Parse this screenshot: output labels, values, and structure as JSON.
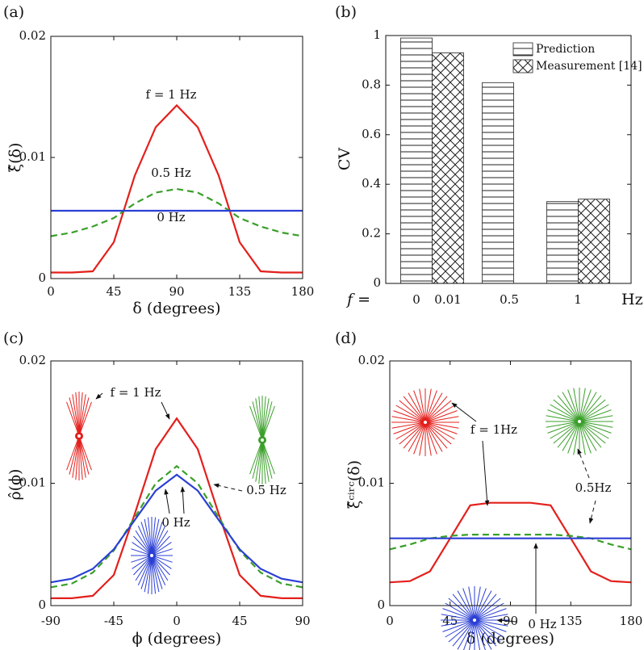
{
  "chart_data": [
    {
      "type": "line",
      "panel_label": "(a)",
      "xlabel": "δ (degrees)",
      "ylabel": "ξ̂(δ)",
      "x": [
        0,
        15,
        30,
        45,
        60,
        75,
        90,
        105,
        120,
        135,
        150,
        165,
        180
      ],
      "xlim": [
        0,
        180
      ],
      "xticks": [
        0,
        45,
        90,
        135,
        180
      ],
      "ylim": [
        0,
        0.02
      ],
      "yticks": [
        0,
        0.01,
        0.02
      ],
      "series": [
        {
          "name": "f = 1 Hz",
          "color": "#e3201c",
          "dashed": false,
          "values": [
            0.0005,
            0.0005,
            0.0006,
            0.003,
            0.0085,
            0.0125,
            0.0143,
            0.0125,
            0.0085,
            0.003,
            0.0006,
            0.0005,
            0.0005
          ]
        },
        {
          "name": "0.5 Hz",
          "color": "#3a9f2a",
          "dashed": true,
          "values": [
            0.0035,
            0.0038,
            0.0043,
            0.005,
            0.0062,
            0.0071,
            0.0074,
            0.0071,
            0.0062,
            0.005,
            0.0043,
            0.0038,
            0.0035
          ]
        },
        {
          "name": "0 Hz",
          "color": "#2b3fd4",
          "dashed": false,
          "values": [
            0.0056,
            0.0056,
            0.0056,
            0.0056,
            0.0056,
            0.0056,
            0.0056,
            0.0056,
            0.0056,
            0.0056,
            0.0056,
            0.0056,
            0.0056
          ]
        }
      ]
    },
    {
      "type": "bar",
      "panel_label": "(b)",
      "ylabel": "CV",
      "x_prefix": "f =",
      "x_unit": "Hz",
      "categories": [
        "0",
        "0.01",
        "0.5",
        "1"
      ],
      "ylim": [
        0,
        1
      ],
      "yticks": [
        0,
        0.2,
        0.4,
        0.6,
        0.8,
        1
      ],
      "legend": "upper right",
      "series": [
        {
          "name": "Prediction",
          "hatch": "horizontal",
          "values": [
            0.99,
            null,
            0.81,
            0.33
          ]
        },
        {
          "name": "Measurement [14]",
          "hatch": "cross",
          "values": [
            null,
            0.93,
            null,
            0.34
          ]
        }
      ]
    },
    {
      "type": "line",
      "panel_label": "(c)",
      "xlabel": "ϕ (degrees)",
      "ylabel": "ρ̂(ϕ)",
      "x": [
        -90,
        -75,
        -60,
        -45,
        -30,
        -15,
        0,
        15,
        30,
        45,
        60,
        75,
        90
      ],
      "xlim": [
        -90,
        90
      ],
      "xticks": [
        -90,
        -45,
        0,
        45,
        90
      ],
      "ylim": [
        0,
        0.02
      ],
      "yticks": [
        0,
        0.01,
        0.02
      ],
      "series": [
        {
          "name": "f = 1 Hz",
          "color": "#e3201c",
          "dashed": false,
          "values": [
            0.0006,
            0.0006,
            0.0008,
            0.0025,
            0.0075,
            0.0128,
            0.0153,
            0.0128,
            0.0075,
            0.0025,
            0.0008,
            0.0006,
            0.0006
          ]
        },
        {
          "name": "0.5 Hz",
          "color": "#3a9f2a",
          "dashed": true,
          "values": [
            0.0015,
            0.0018,
            0.0027,
            0.0045,
            0.0072,
            0.01,
            0.0114,
            0.01,
            0.0072,
            0.0045,
            0.0027,
            0.0018,
            0.0015
          ]
        },
        {
          "name": "0 Hz",
          "color": "#2b3fd4",
          "dashed": false,
          "values": [
            0.0019,
            0.0022,
            0.003,
            0.0046,
            0.007,
            0.0094,
            0.0107,
            0.0094,
            0.007,
            0.0046,
            0.003,
            0.0022,
            0.0019
          ]
        }
      ]
    },
    {
      "type": "line",
      "panel_label": "(d)",
      "xlabel": "δ (degrees)",
      "ylabel": "ξ̂ᶜⁱʳᶜ(δ)",
      "x": [
        0,
        15,
        30,
        45,
        60,
        75,
        90,
        105,
        120,
        135,
        150,
        165,
        180
      ],
      "xlim": [
        0,
        180
      ],
      "xticks": [
        0,
        45,
        90,
        135,
        180
      ],
      "ylim": [
        0,
        0.02
      ],
      "yticks": [
        0,
        0.01,
        0.02
      ],
      "series": [
        {
          "name": "f = 1Hz",
          "color": "#e3201c",
          "dashed": false,
          "values": [
            0.0019,
            0.002,
            0.0028,
            0.0055,
            0.0082,
            0.0084,
            0.0084,
            0.0084,
            0.0082,
            0.0055,
            0.0028,
            0.002,
            0.0019
          ]
        },
        {
          "name": "0.5Hz",
          "color": "#3a9f2a",
          "dashed": true,
          "values": [
            0.0046,
            0.005,
            0.0055,
            0.0057,
            0.0058,
            0.0058,
            0.0058,
            0.0058,
            0.0058,
            0.0057,
            0.0055,
            0.005,
            0.0046
          ]
        },
        {
          "name": "0 Hz",
          "color": "#2b3fd4",
          "dashed": false,
          "values": [
            0.0055,
            0.0055,
            0.0055,
            0.0055,
            0.0055,
            0.0055,
            0.0055,
            0.0055,
            0.0055,
            0.0055,
            0.0055,
            0.0055,
            0.0055
          ]
        }
      ]
    }
  ]
}
